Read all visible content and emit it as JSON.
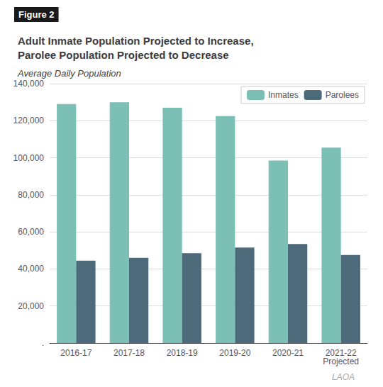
{
  "chart_data": {
    "type": "bar",
    "title": "Adult Inmate Population Projected to Increase,\nParolee Population Projected to Decrease",
    "subtitle": "Average Daily Population",
    "annotations": [
      "Figure 2",
      "LAOA"
    ],
    "categories": [
      "2016-17",
      "2017-18",
      "2018-19",
      "2019-20",
      "2020-21",
      "2021-22\nProjected"
    ],
    "series": [
      {
        "name": "Inmates",
        "color": "#7bbfb5",
        "values": [
          129000,
          130000,
          127000,
          122500,
          98500,
          105500
        ]
      },
      {
        "name": "Parolees",
        "color": "#4d6a7a",
        "values": [
          44500,
          46000,
          48500,
          51500,
          53500,
          47500
        ]
      }
    ],
    "ylim": [
      0,
      140000
    ],
    "yticks": [
      {
        "value": 0,
        "label": "."
      },
      {
        "value": 20000,
        "label": "20,000"
      },
      {
        "value": 40000,
        "label": "40,000"
      },
      {
        "value": 60000,
        "label": "60,000"
      },
      {
        "value": 80000,
        "label": "80,000"
      },
      {
        "value": 100000,
        "label": "100,000"
      },
      {
        "value": 120000,
        "label": "120,000"
      },
      {
        "value": 140000,
        "label": "140,000"
      }
    ],
    "grid": true,
    "legend": "upper right"
  }
}
